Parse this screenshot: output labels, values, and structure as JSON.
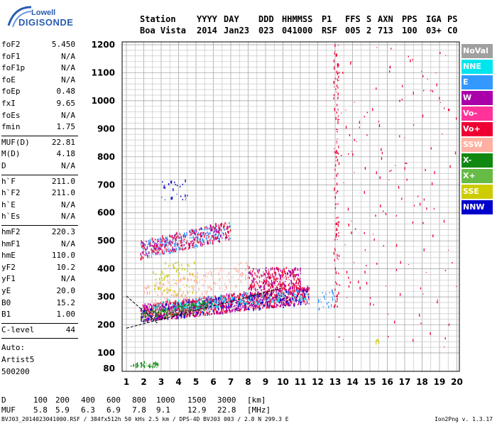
{
  "logo": {
    "top": "Lowell",
    "main": "DIGISONDE"
  },
  "header": {
    "row1": [
      {
        "text": "Station",
        "x": 197
      },
      {
        "text": "YYYY",
        "x": 277
      },
      {
        "text": "DAY",
        "x": 315
      },
      {
        "text": "DDD",
        "x": 364
      },
      {
        "text": "HHMMSS",
        "x": 397
      },
      {
        "text": "P1",
        "x": 453
      },
      {
        "text": "FFS",
        "x": 486
      },
      {
        "text": "S",
        "x": 516
      },
      {
        "text": "AXN",
        "x": 532
      },
      {
        "text": "PPS",
        "x": 566
      },
      {
        "text": "IGA",
        "x": 600
      },
      {
        "text": "PS",
        "x": 630
      }
    ],
    "row2": [
      {
        "text": "Boa Vista",
        "x": 197
      },
      {
        "text": "2014",
        "x": 277
      },
      {
        "text": "Jan23",
        "x": 315
      },
      {
        "text": "023",
        "x": 364
      },
      {
        "text": "041000",
        "x": 397
      },
      {
        "text": "RSF",
        "x": 453
      },
      {
        "text": "005",
        "x": 486
      },
      {
        "text": "2",
        "x": 516
      },
      {
        "text": "713",
        "x": 532
      },
      {
        "text": "100",
        "x": 566
      },
      {
        "text": "03+",
        "x": 600
      },
      {
        "text": "C0",
        "x": 630
      }
    ]
  },
  "params": {
    "group1": [
      {
        "label": "foF2",
        "value": "5.450"
      },
      {
        "label": "foF1",
        "value": "N/A"
      },
      {
        "label": "foF1p",
        "value": "N/A"
      },
      {
        "label": "foE",
        "value": "N/A"
      },
      {
        "label": "foEp",
        "value": "0.48"
      },
      {
        "label": "fxI",
        "value": "9.65"
      },
      {
        "label": "foEs",
        "value": "N/A"
      },
      {
        "label": "fmin",
        "value": "1.75"
      }
    ],
    "group2": [
      {
        "label": "MUF(D)",
        "value": "22.81"
      },
      {
        "label": "M(D)",
        "value": "4.18"
      },
      {
        "label": "D",
        "value": "N/A"
      }
    ],
    "group3": [
      {
        "label": "h`F",
        "value": "211.0"
      },
      {
        "label": "h`F2",
        "value": "211.0"
      },
      {
        "label": "h`E",
        "value": "N/A"
      },
      {
        "label": "h`Es",
        "value": "N/A"
      }
    ],
    "group4": [
      {
        "label": "hmF2",
        "value": "220.3"
      },
      {
        "label": "hmF1",
        "value": "N/A"
      },
      {
        "label": "hmE",
        "value": "110.0"
      },
      {
        "label": "yF2",
        "value": "10.2"
      },
      {
        "label": "yF1",
        "value": "N/A"
      },
      {
        "label": "yE",
        "value": "20.0"
      },
      {
        "label": "B0",
        "value": "15.2"
      },
      {
        "label": "B1",
        "value": "1.00"
      }
    ],
    "clevel": {
      "label": "C-level",
      "value": "44"
    },
    "auto": [
      "Auto:",
      "Artist5",
      "500200"
    ]
  },
  "legend": [
    {
      "label": "NoVal",
      "color": "#a0a0a0"
    },
    {
      "label": "NNE",
      "color": "#00e5ee"
    },
    {
      "label": "E",
      "color": "#3399ff"
    },
    {
      "label": "W",
      "color": "#aa00aa"
    },
    {
      "label": "Vo-",
      "color": "#ff3399"
    },
    {
      "label": "Vo+",
      "color": "#ee0033"
    },
    {
      "label": "SSW",
      "color": "#ffb0a0"
    },
    {
      "label": "X-",
      "color": "#118811"
    },
    {
      "label": "X+",
      "color": "#66bb44"
    },
    {
      "label": "SSE",
      "color": "#cccc00"
    },
    {
      "label": "NNW",
      "color": "#0000cc"
    }
  ],
  "muf_table": {
    "d_label": "D",
    "d_values": [
      "100",
      "200",
      "400",
      "600",
      "800",
      "1000",
      "1500",
      "3000",
      "[km]"
    ],
    "muf_label": "MUF",
    "muf_values": [
      "5.8",
      "5.9",
      "6.3",
      "6.9",
      "7.8",
      "9.1",
      "12.9",
      "22.8",
      "[MHz]"
    ]
  },
  "footer": {
    "left": "BVJ03_2014023041000.RSF / 384fx512h 50 kHs 2.5 km / DPS-4D BVJ03 003 / 2.8 N 299.3 E",
    "right": "Ion2Png v. 1.3.17"
  },
  "chart_data": {
    "type": "scatter",
    "title": "",
    "xlabel": "",
    "ylabel": "",
    "xlim": [
      1,
      20
    ],
    "ylim": [
      80,
      1200
    ],
    "x_ticks": [
      1,
      2,
      3,
      4,
      5,
      6,
      7,
      8,
      9,
      10,
      11,
      12,
      13,
      14,
      15,
      16,
      17,
      18,
      19,
      20
    ],
    "y_ticks": [
      80,
      100,
      200,
      300,
      400,
      500,
      600,
      700,
      800,
      900,
      1000,
      1100,
      1200
    ],
    "grid": true,
    "legend_position": "right",
    "clusters": [
      {
        "series": "Vo+",
        "x_range": [
          1.8,
          11.5
        ],
        "y_range": [
          205,
          330
        ],
        "density": 900
      },
      {
        "series": "W",
        "x_range": [
          1.8,
          11.5
        ],
        "y_range": [
          205,
          330
        ],
        "density": 500
      },
      {
        "series": "NNW",
        "x_range": [
          1.8,
          11.5
        ],
        "y_range": [
          205,
          320
        ],
        "density": 250
      },
      {
        "series": "NNE",
        "x_range": [
          2.5,
          11.5
        ],
        "y_range": [
          240,
          320
        ],
        "density": 200
      },
      {
        "series": "X-",
        "x_range": [
          1.8,
          6
        ],
        "y_range": [
          205,
          280
        ],
        "density": 150
      },
      {
        "series": "SSW",
        "x_range": [
          2,
          8
        ],
        "y_range": [
          250,
          420
        ],
        "density": 200
      },
      {
        "series": "SSE",
        "x_range": [
          2.5,
          5
        ],
        "y_range": [
          300,
          420
        ],
        "density": 80
      },
      {
        "series": "E",
        "x_range": [
          1.8,
          7
        ],
        "y_range": [
          430,
          560
        ],
        "density": 260
      },
      {
        "series": "Vo+",
        "x_range": [
          1.8,
          7
        ],
        "y_range": [
          430,
          560
        ],
        "density": 220
      },
      {
        "series": "W",
        "x_range": [
          1.8,
          7
        ],
        "y_range": [
          430,
          560
        ],
        "density": 120
      },
      {
        "series": "Vo+",
        "x_range": [
          8,
          11
        ],
        "y_range": [
          320,
          400
        ],
        "density": 220
      },
      {
        "series": "W",
        "x_range": [
          8,
          11
        ],
        "y_range": [
          320,
          400
        ],
        "density": 120
      },
      {
        "series": "X-",
        "x_range": [
          1.2,
          2.8
        ],
        "y_range": [
          80,
          86
        ],
        "density": 40
      },
      {
        "series": "Vo+",
        "x_range": [
          12.9,
          13.2
        ],
        "y_range": [
          250,
          1200
        ],
        "density": 120
      },
      {
        "series": "E",
        "x_range": [
          12,
          13
        ],
        "y_range": [
          250,
          320
        ],
        "density": 30
      },
      {
        "series": "SSE",
        "x_range": [
          15.3,
          15.5
        ],
        "y_range": [
          110,
          150
        ],
        "density": 10
      },
      {
        "series": "NNW",
        "x_range": [
          3,
          4.5
        ],
        "y_range": [
          640,
          710
        ],
        "density": 25
      },
      {
        "series": "Vo+",
        "x_range": [
          13,
          20
        ],
        "y_range": [
          120,
          1200
        ],
        "density": 160
      }
    ],
    "fit_lines": [
      {
        "name": "trace",
        "points": [
          [
            1,
            188
          ],
          [
            10,
            332
          ]
        ]
      },
      {
        "name": "trace",
        "points": [
          [
            1,
            303
          ],
          [
            2.8,
            205
          ]
        ]
      }
    ]
  }
}
